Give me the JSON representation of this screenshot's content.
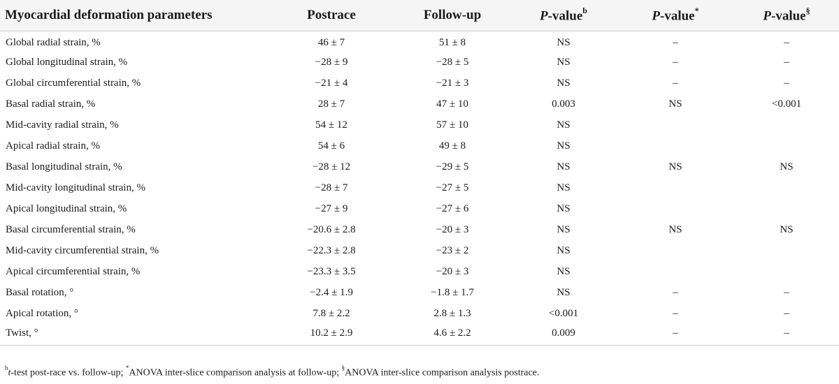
{
  "table": {
    "headers": {
      "param": "Myocardial deformation parameters",
      "postrace": "Postrace",
      "followup": "Follow-up",
      "p_b": {
        "p": "P",
        "rest": "-value",
        "sup": "b"
      },
      "p_star": {
        "p": "P",
        "rest": "-value",
        "sup": "*"
      },
      "p_sect": {
        "p": "P",
        "rest": "-value",
        "sup": "§"
      }
    },
    "rows": [
      [
        "Global radial strain, %",
        "46 ± 7",
        "51 ± 8",
        "NS",
        "–",
        "–"
      ],
      [
        "Global longitudinal strain, %",
        "−28 ± 9",
        "−28 ± 5",
        "NS",
        "–",
        "–"
      ],
      [
        "Global circumferential strain, %",
        "−21 ± 4",
        "−21 ± 3",
        "NS",
        "–",
        "–"
      ],
      [
        "Basal radial strain, %",
        "28 ± 7",
        "47 ± 10",
        "0.003",
        "NS",
        "<0.001"
      ],
      [
        "Mid-cavity radial strain, %",
        "54 ± 12",
        "57 ± 10",
        "NS",
        "",
        ""
      ],
      [
        "Apical radial strain, %",
        "54 ± 6",
        "49 ± 8",
        "NS",
        "",
        ""
      ],
      [
        "Basal longitudinal strain, %",
        "−28 ± 12",
        "−29 ± 5",
        "NS",
        "NS",
        "NS"
      ],
      [
        "Mid-cavity longitudinal strain, %",
        "−28 ± 7",
        "−27 ± 5",
        "NS",
        "",
        ""
      ],
      [
        "Apical longitudinal strain, %",
        "−27 ± 9",
        "−27 ± 6",
        "NS",
        "",
        ""
      ],
      [
        "Basal circumferential strain, %",
        "−20.6 ± 2.8",
        "−20 ± 3",
        "NS",
        "NS",
        "NS"
      ],
      [
        "Mid-cavity circumferential strain, %",
        "−22.3 ± 2.8",
        "−23 ± 2",
        "NS",
        "",
        ""
      ],
      [
        "Apical circumferential strain, %",
        "−23.3 ± 3.5",
        "−20 ± 3",
        "NS",
        "",
        ""
      ],
      [
        "Basal rotation, °",
        "−2.4 ± 1.9",
        "−1.8 ± 1.7",
        "NS",
        "–",
        "–"
      ],
      [
        "Apical rotation, °",
        "7.8 ± 2.2",
        "2.8 ± 1.3",
        "<0.001",
        "–",
        "–"
      ],
      [
        "Twist, °",
        "10.2 ± 2.9",
        "4.6 ± 2.2",
        "0.009",
        "–",
        "–"
      ]
    ]
  },
  "footnote": {
    "sup_b": "b",
    "t": "t",
    "part1": "-test post-race vs. follow-up; ",
    "sup_star": "*",
    "part2": "ANOVA inter-slice comparison analysis at follow-up; ",
    "sup_sect": "§",
    "part3": "ANOVA inter-slice comparison analysis postrace."
  }
}
